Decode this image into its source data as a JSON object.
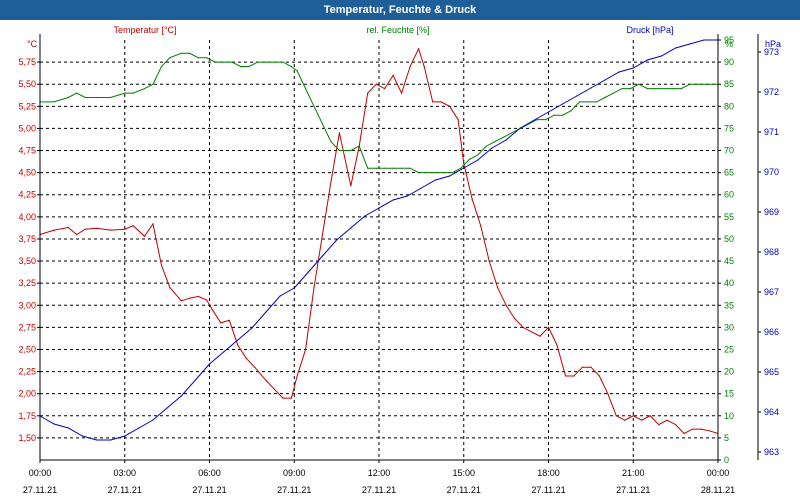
{
  "window": {
    "title": "Temperatur, Feuchte & Druck"
  },
  "chart_data": {
    "type": "line",
    "title": "Temperatur, Feuchte & Druck",
    "grid": true,
    "x_ticks": [
      {
        "time": "00:00",
        "date": "27.11.21"
      },
      {
        "time": "03:00",
        "date": "27.11.21"
      },
      {
        "time": "06:00",
        "date": "27.11.21"
      },
      {
        "time": "09:00",
        "date": "27.11.21"
      },
      {
        "time": "12:00",
        "date": "27.11.21"
      },
      {
        "time": "15:00",
        "date": "27.11.21"
      },
      {
        "time": "18:00",
        "date": "27.11.21"
      },
      {
        "time": "21:00",
        "date": "27.11.21"
      },
      {
        "time": "00:00",
        "date": "28.11.21"
      }
    ],
    "x_range_hours": [
      0,
      24
    ],
    "axes": {
      "temperature": {
        "unit": "°C",
        "label": "Temperatur [°C]",
        "color": "#c00000",
        "range": [
          1.25,
          6.0
        ],
        "ticks": [
          "1,50",
          "1,75",
          "2,00",
          "2,25",
          "2,50",
          "2,75",
          "3,00",
          "3,25",
          "3,50",
          "3,75",
          "4,00",
          "4,25",
          "4,50",
          "4,75",
          "5,00",
          "5,25",
          "5,50",
          "5,75"
        ]
      },
      "humidity": {
        "unit": "%",
        "label": "rel. Feuchte [%]",
        "color": "#008000",
        "range": [
          0,
          95
        ],
        "ticks": [
          "0",
          "5",
          "10",
          "15",
          "20",
          "25",
          "30",
          "35",
          "40",
          "45",
          "50",
          "55",
          "60",
          "65",
          "70",
          "75",
          "80",
          "85",
          "90",
          "95"
        ]
      },
      "pressure": {
        "unit": "hPa",
        "label": "Druck [hPa]",
        "color": "#0000c0",
        "range": [
          962.8,
          973.3
        ],
        "ticks": [
          "963",
          "964",
          "965",
          "966",
          "967",
          "968",
          "969",
          "970",
          "971",
          "972",
          "973"
        ]
      }
    },
    "series": [
      {
        "name": "Temperatur [°C]",
        "axis": "temperature",
        "color": "#c00000",
        "x": [
          0,
          0.5,
          1,
          1.3,
          1.6,
          2,
          2.5,
          3,
          3.3,
          3.7,
          4,
          4.3,
          4.6,
          5,
          5.3,
          5.6,
          5.9,
          6.1,
          6.4,
          6.7,
          7,
          7.3,
          7.6,
          8,
          8.3,
          8.6,
          8.9,
          9.1,
          9.4,
          9.7,
          10,
          10.3,
          10.6,
          11,
          11.3,
          11.6,
          11.9,
          12.2,
          12.5,
          12.8,
          13.1,
          13.4,
          13.6,
          13.9,
          14.2,
          14.5,
          14.8,
          15,
          15.3,
          15.6,
          15.9,
          16.2,
          16.5,
          16.8,
          17.1,
          17.4,
          17.7,
          18,
          18.3,
          18.6,
          18.9,
          19.2,
          19.5,
          19.8,
          20.1,
          20.4,
          20.7,
          21,
          21.3,
          21.6,
          21.9,
          22.2,
          22.5,
          22.8,
          23.1,
          23.4,
          23.7,
          24
        ],
        "values": [
          3.8,
          3.85,
          3.88,
          3.8,
          3.86,
          3.87,
          3.85,
          3.86,
          3.9,
          3.78,
          3.92,
          3.45,
          3.2,
          3.05,
          3.08,
          3.1,
          3.06,
          2.95,
          2.8,
          2.83,
          2.55,
          2.4,
          2.3,
          2.15,
          2.05,
          1.95,
          1.95,
          2.2,
          2.5,
          3.2,
          3.8,
          4.4,
          4.95,
          4.35,
          4.8,
          5.4,
          5.5,
          5.45,
          5.6,
          5.4,
          5.7,
          5.9,
          5.7,
          5.3,
          5.3,
          5.25,
          5.1,
          4.6,
          4.2,
          3.9,
          3.5,
          3.2,
          3.0,
          2.85,
          2.75,
          2.7,
          2.65,
          2.75,
          2.55,
          2.2,
          2.2,
          2.3,
          2.3,
          2.2,
          2.0,
          1.75,
          1.7,
          1.75,
          1.7,
          1.75,
          1.65,
          1.7,
          1.65,
          1.55,
          1.6,
          1.6,
          1.58,
          1.55
        ]
      },
      {
        "name": "rel. Feuchte [%]",
        "axis": "humidity",
        "color": "#008000",
        "x": [
          0,
          0.5,
          1,
          1.3,
          1.6,
          2,
          2.5,
          3,
          3.3,
          3.7,
          4,
          4.3,
          4.6,
          5,
          5.3,
          5.6,
          5.9,
          6.2,
          6.5,
          6.8,
          7.1,
          7.4,
          7.7,
          8,
          8.3,
          8.6,
          8.9,
          9.1,
          9.4,
          9.7,
          10,
          10.3,
          10.6,
          11,
          11.3,
          11.6,
          11.9,
          12.2,
          12.5,
          12.8,
          13.1,
          13.4,
          13.7,
          14,
          14.3,
          14.6,
          14.9,
          15.2,
          15.5,
          15.8,
          16.1,
          16.4,
          16.7,
          17,
          17.3,
          17.6,
          17.9,
          18.2,
          18.5,
          18.8,
          19.1,
          19.4,
          19.7,
          20,
          20.3,
          20.6,
          20.9,
          21.2,
          21.5,
          21.8,
          22.1,
          22.4,
          22.7,
          23,
          23.3,
          23.6,
          24
        ],
        "values": [
          81,
          81,
          82,
          83,
          82,
          82,
          82,
          83,
          83,
          84,
          85,
          89,
          91,
          92,
          92,
          91,
          91,
          90,
          90,
          90,
          89,
          89,
          90,
          90,
          90,
          90,
          89,
          88,
          84,
          80,
          76,
          72,
          70,
          70,
          71,
          66,
          66,
          66,
          66,
          66,
          66,
          65,
          65,
          65,
          65,
          65,
          66,
          68,
          69,
          71,
          72,
          73,
          74,
          75,
          76,
          77,
          77,
          78,
          78,
          79,
          81,
          81,
          81,
          82,
          83,
          84,
          84,
          85,
          84,
          84,
          84,
          84,
          84,
          85,
          85,
          85,
          85
        ]
      },
      {
        "name": "Druck [hPa]",
        "axis": "pressure",
        "color": "#0000c0",
        "x": [
          0,
          0.5,
          1,
          1.5,
          2,
          2.5,
          3,
          3.5,
          4,
          4.5,
          5,
          5.5,
          6,
          6.5,
          7,
          7.5,
          8,
          8.5,
          9,
          9.5,
          10,
          10.5,
          11,
          11.5,
          12,
          12.5,
          13,
          13.5,
          14,
          14.5,
          15,
          15.5,
          16,
          16.5,
          17,
          17.5,
          18,
          18.5,
          19,
          19.5,
          20,
          20.5,
          21,
          21.5,
          22,
          22.5,
          23,
          23.5,
          24
        ],
        "values": [
          963.9,
          963.7,
          963.6,
          963.4,
          963.3,
          963.3,
          963.4,
          963.6,
          963.8,
          964.1,
          964.4,
          964.8,
          965.2,
          965.5,
          965.8,
          966.1,
          966.5,
          966.9,
          967.1,
          967.5,
          967.9,
          968.3,
          968.6,
          968.9,
          969.1,
          969.3,
          969.4,
          969.6,
          969.8,
          969.9,
          970.1,
          970.3,
          970.6,
          970.8,
          971.1,
          971.3,
          971.5,
          971.7,
          971.9,
          972.1,
          972.3,
          972.5,
          972.6,
          972.8,
          972.9,
          973.1,
          973.2,
          973.3,
          973.3
        ]
      }
    ]
  }
}
